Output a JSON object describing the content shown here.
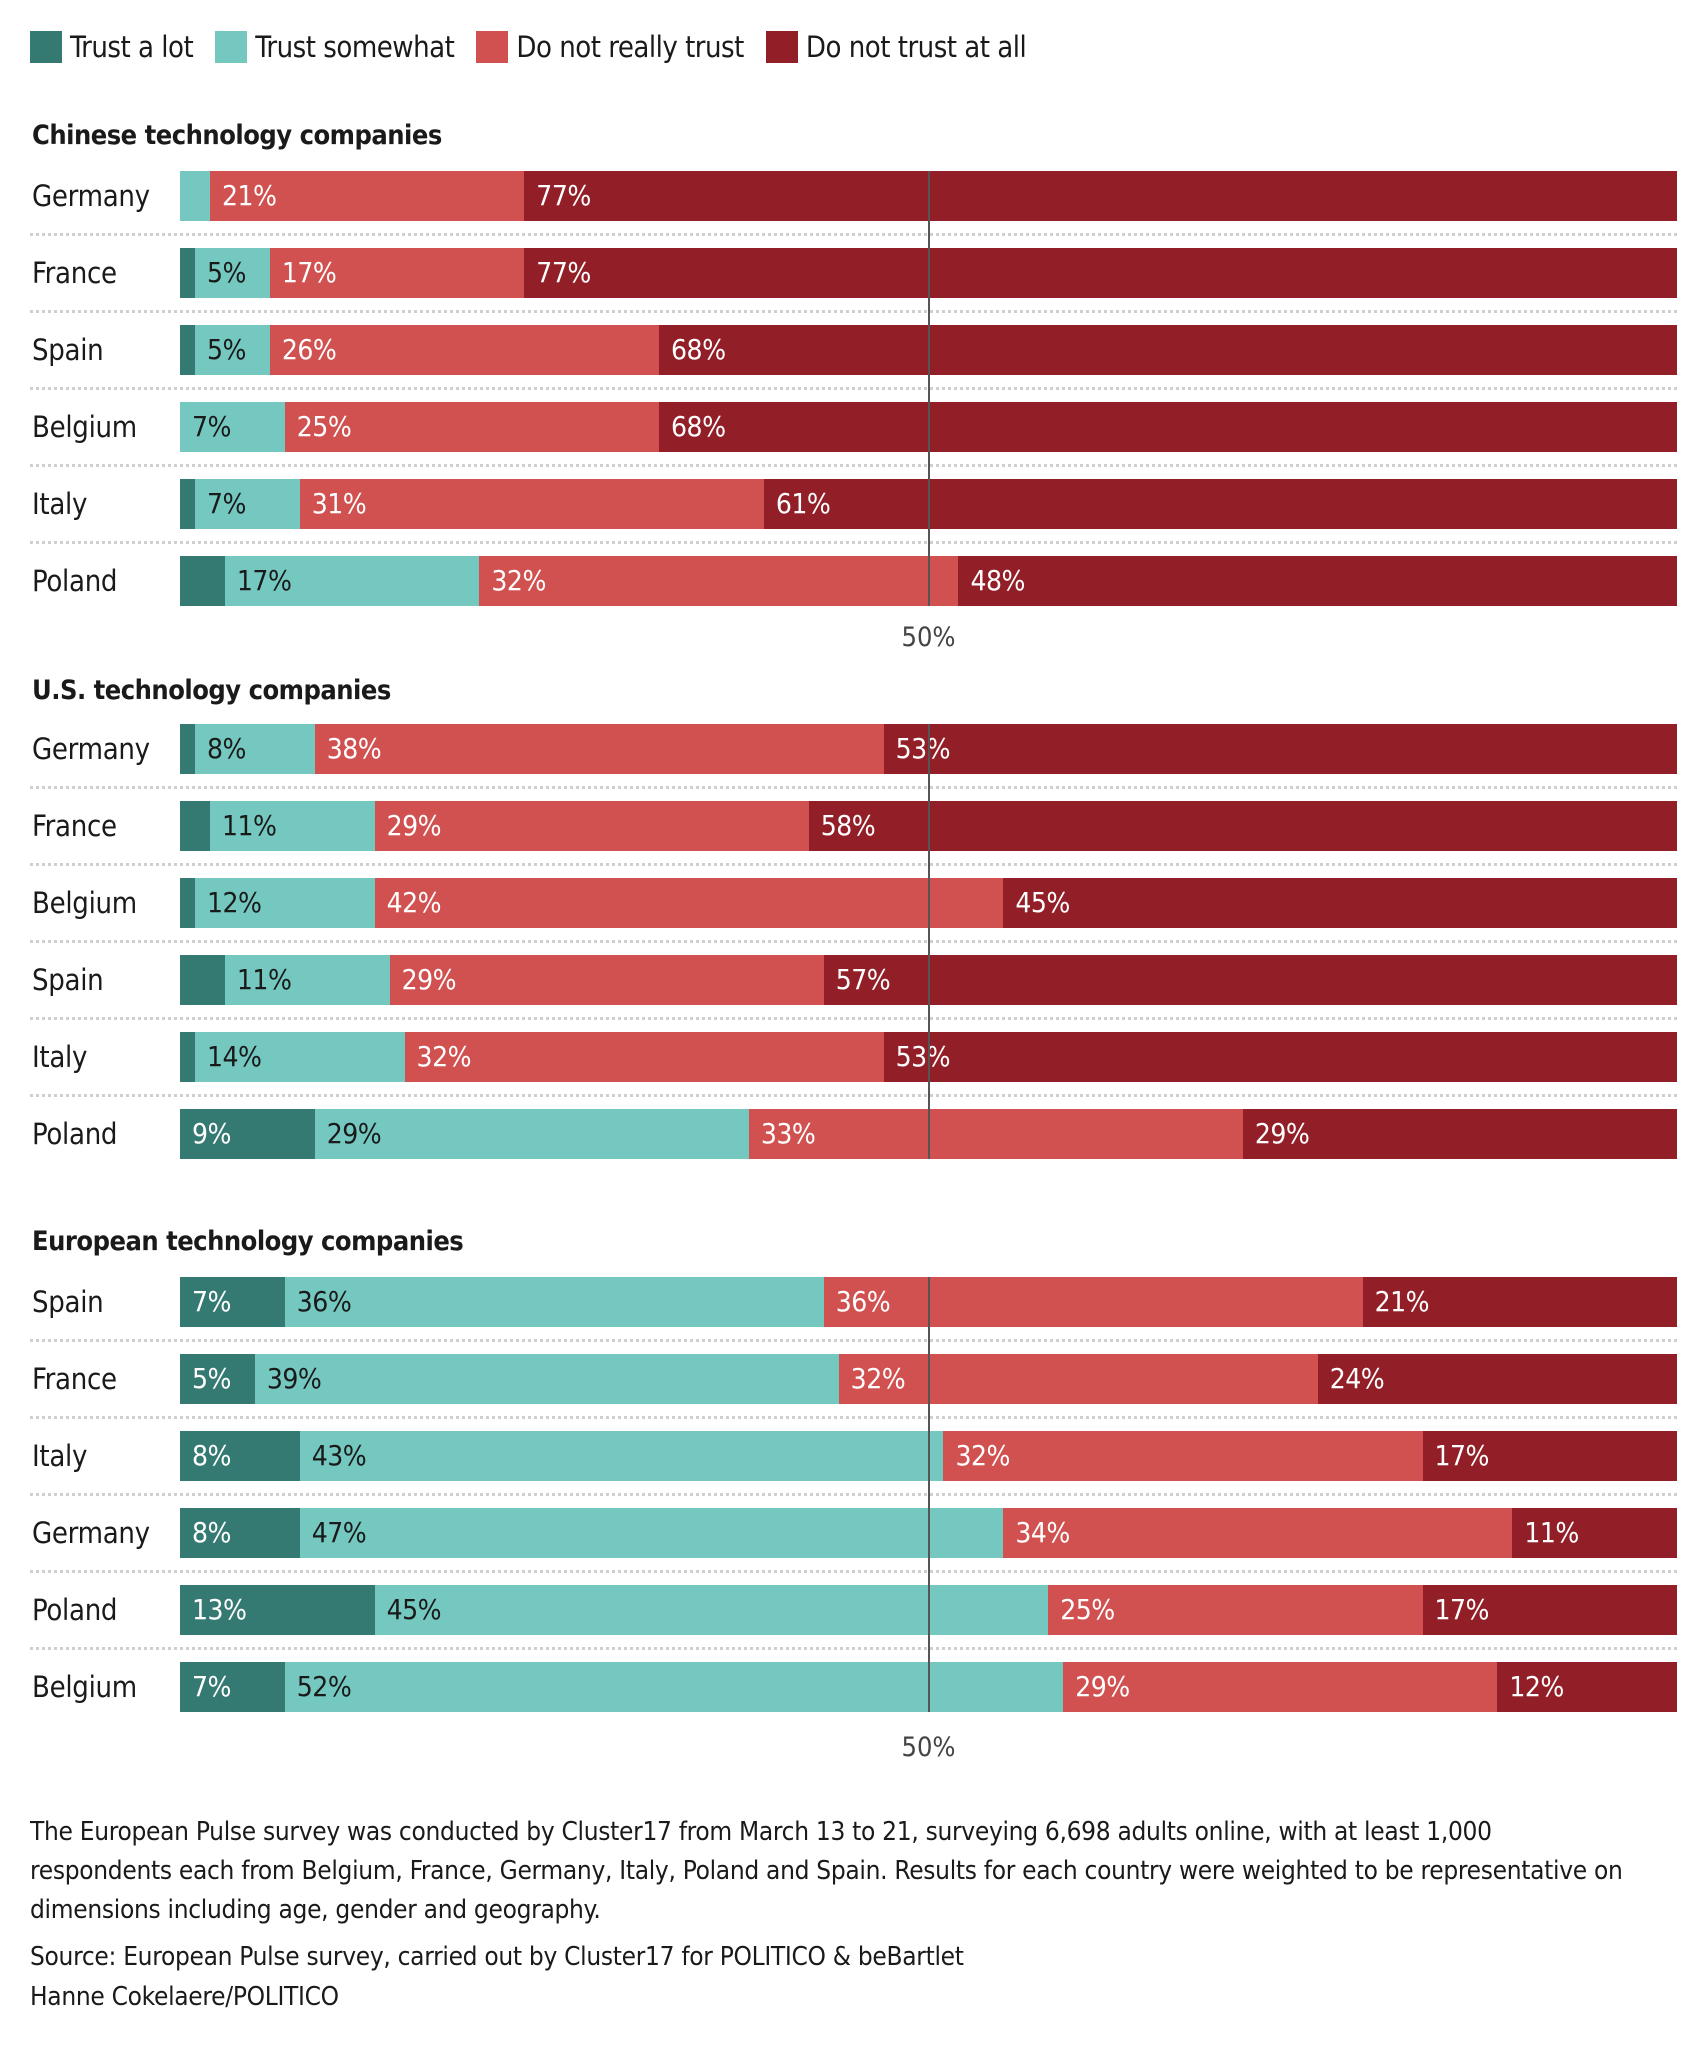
{
  "legend": [
    {
      "label": "Trust a lot",
      "color": "#357a72"
    },
    {
      "label": "Trust somewhat",
      "color": "#74c8c0"
    },
    {
      "label": "Do not really trust",
      "color": "#d15050"
    },
    {
      "label": "Do not trust at all",
      "color": "#921f28"
    }
  ],
  "midline_label": "50%",
  "footer": {
    "note": "The European Pulse survey was conducted by Cluster17 from March 13 to 21, surveying 6,698 adults online, with at least 1,000 respondents each from Belgium, France, Germany, Italy, Poland and Spain. Results for each country were weighted to be representative on dimensions including age, gender and geography.",
    "source": "Source: European Pulse survey, carried out by Cluster17 for POLITICO & beBartlet",
    "credit": "Hanne Cokelaere/POLITICO"
  },
  "chart_data": [
    {
      "type": "bar",
      "orientation": "horizontal-stacked",
      "title": "Chinese technology companies",
      "xlim": [
        0,
        100
      ],
      "reference_line": 50,
      "categories": [
        "Germany",
        "France",
        "Spain",
        "Belgium",
        "Italy",
        "Poland"
      ],
      "series": [
        {
          "name": "Trust a lot",
          "values": [
            0,
            1,
            1,
            0,
            1,
            3
          ],
          "labels": [
            "",
            "",
            "",
            "",
            "",
            ""
          ]
        },
        {
          "name": "Trust somewhat",
          "values": [
            2,
            5,
            5,
            7,
            7,
            17
          ],
          "labels": [
            "",
            "5%",
            "5%",
            "7%",
            "7%",
            "17%"
          ]
        },
        {
          "name": "Do not really trust",
          "values": [
            21,
            17,
            26,
            25,
            31,
            32
          ],
          "labels": [
            "21%",
            "17%",
            "26%",
            "25%",
            "31%",
            "32%"
          ]
        },
        {
          "name": "Do not trust at all",
          "values": [
            77,
            77,
            68,
            68,
            61,
            48
          ],
          "labels": [
            "77%",
            "77%",
            "68%",
            "68%",
            "61%",
            "48%"
          ]
        }
      ]
    },
    {
      "type": "bar",
      "orientation": "horizontal-stacked",
      "title": "U.S. technology companies",
      "xlim": [
        0,
        100
      ],
      "reference_line": 50,
      "categories": [
        "Germany",
        "France",
        "Belgium",
        "Spain",
        "Italy",
        "Poland"
      ],
      "series": [
        {
          "name": "Trust a lot",
          "values": [
            1,
            2,
            1,
            3,
            1,
            9
          ],
          "labels": [
            "",
            "",
            "",
            "",
            "",
            "9%"
          ]
        },
        {
          "name": "Trust somewhat",
          "values": [
            8,
            11,
            12,
            11,
            14,
            29
          ],
          "labels": [
            "8%",
            "11%",
            "12%",
            "11%",
            "14%",
            "29%"
          ]
        },
        {
          "name": "Do not really trust",
          "values": [
            38,
            29,
            42,
            29,
            32,
            33
          ],
          "labels": [
            "38%",
            "29%",
            "42%",
            "29%",
            "32%",
            "33%"
          ]
        },
        {
          "name": "Do not trust at all",
          "values": [
            53,
            58,
            45,
            57,
            53,
            29
          ],
          "labels": [
            "53%",
            "58%",
            "45%",
            "57%",
            "53%",
            "29%"
          ]
        }
      ]
    },
    {
      "type": "bar",
      "orientation": "horizontal-stacked",
      "title": "European technology companies",
      "xlim": [
        0,
        100
      ],
      "reference_line": 50,
      "categories": [
        "Spain",
        "France",
        "Italy",
        "Germany",
        "Poland",
        "Belgium"
      ],
      "series": [
        {
          "name": "Trust a lot",
          "values": [
            7,
            5,
            8,
            8,
            13,
            7
          ],
          "labels": [
            "7%",
            "5%",
            "8%",
            "8%",
            "13%",
            "7%"
          ]
        },
        {
          "name": "Trust somewhat",
          "values": [
            36,
            39,
            43,
            47,
            45,
            52
          ],
          "labels": [
            "36%",
            "39%",
            "43%",
            "47%",
            "45%",
            "52%"
          ]
        },
        {
          "name": "Do not really trust",
          "values": [
            36,
            32,
            32,
            34,
            25,
            29
          ],
          "labels": [
            "36%",
            "32%",
            "32%",
            "34%",
            "25%",
            "29%"
          ]
        },
        {
          "name": "Do not trust at all",
          "values": [
            21,
            24,
            17,
            11,
            17,
            12
          ],
          "labels": [
            "21%",
            "24%",
            "17%",
            "11%",
            "17%",
            "12%"
          ]
        }
      ]
    }
  ]
}
